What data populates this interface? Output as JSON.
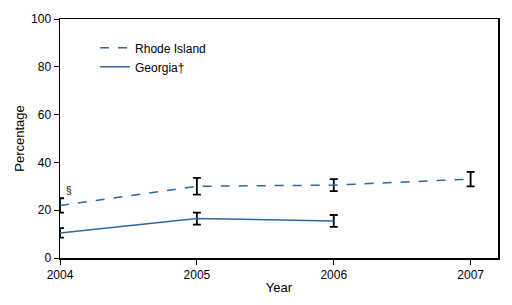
{
  "chart_data": {
    "type": "line",
    "x_label": "Year",
    "y_label": "Percentage",
    "x": [
      2004,
      2005,
      2006,
      2007
    ],
    "series": [
      {
        "name": "Rhode Island",
        "color": "#2a6aa6",
        "line_style": "dash",
        "values": [
          22,
          30,
          30.5,
          33
        ],
        "errors": [
          3,
          3.5,
          2.5,
          3
        ]
      },
      {
        "name": "Georgia†",
        "color": "#2a6aa6",
        "line_style": "solid",
        "values": [
          10.5,
          16.5,
          15.5,
          null
        ],
        "errors": [
          2,
          2.5,
          2.5,
          null
        ]
      }
    ],
    "xlim": [
      2004,
      2007.2
    ],
    "xticks": [
      2004,
      2005,
      2006,
      2007
    ],
    "ylim": [
      0,
      100
    ],
    "yticks": [
      0,
      20,
      40,
      60,
      80,
      100
    ],
    "grid": false,
    "legend": "top-left",
    "annotations": [
      {
        "text": "§",
        "x": 2004,
        "y": 25
      }
    ]
  }
}
